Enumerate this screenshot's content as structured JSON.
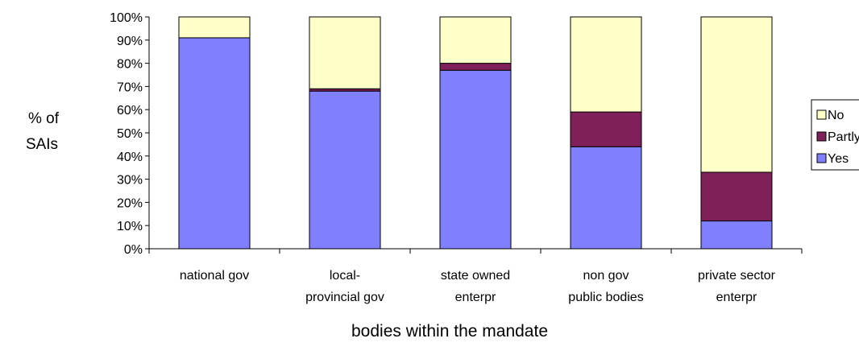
{
  "chart_data": {
    "type": "bar",
    "stacked": true,
    "percent_stacked": true,
    "title": "",
    "ylabel_lines": [
      "% of",
      "SAIs"
    ],
    "xlabel": "bodies within the mandate",
    "ylim": [
      0,
      100
    ],
    "yticks": [
      "0%",
      "10%",
      "20%",
      "30%",
      "40%",
      "50%",
      "60%",
      "70%",
      "80%",
      "90%",
      "100%"
    ],
    "categories": [
      [
        "national gov"
      ],
      [
        "local-",
        "provincial gov"
      ],
      [
        "state owned",
        "enterpr"
      ],
      [
        "non gov",
        "public bodies"
      ],
      [
        "private sector",
        "enterpr"
      ]
    ],
    "series": [
      {
        "name": "Yes",
        "color": "#8080ff",
        "values": [
          91,
          68,
          77,
          44,
          12
        ]
      },
      {
        "name": "Partly",
        "color": "#80205a",
        "values": [
          0,
          1,
          3,
          15,
          21
        ]
      },
      {
        "name": "No",
        "color": "#ffffc8",
        "values": [
          9,
          31,
          20,
          41,
          67
        ]
      }
    ],
    "legend": {
      "position": "right",
      "order": [
        "No",
        "Partly",
        "Yes"
      ]
    },
    "grid": false
  }
}
